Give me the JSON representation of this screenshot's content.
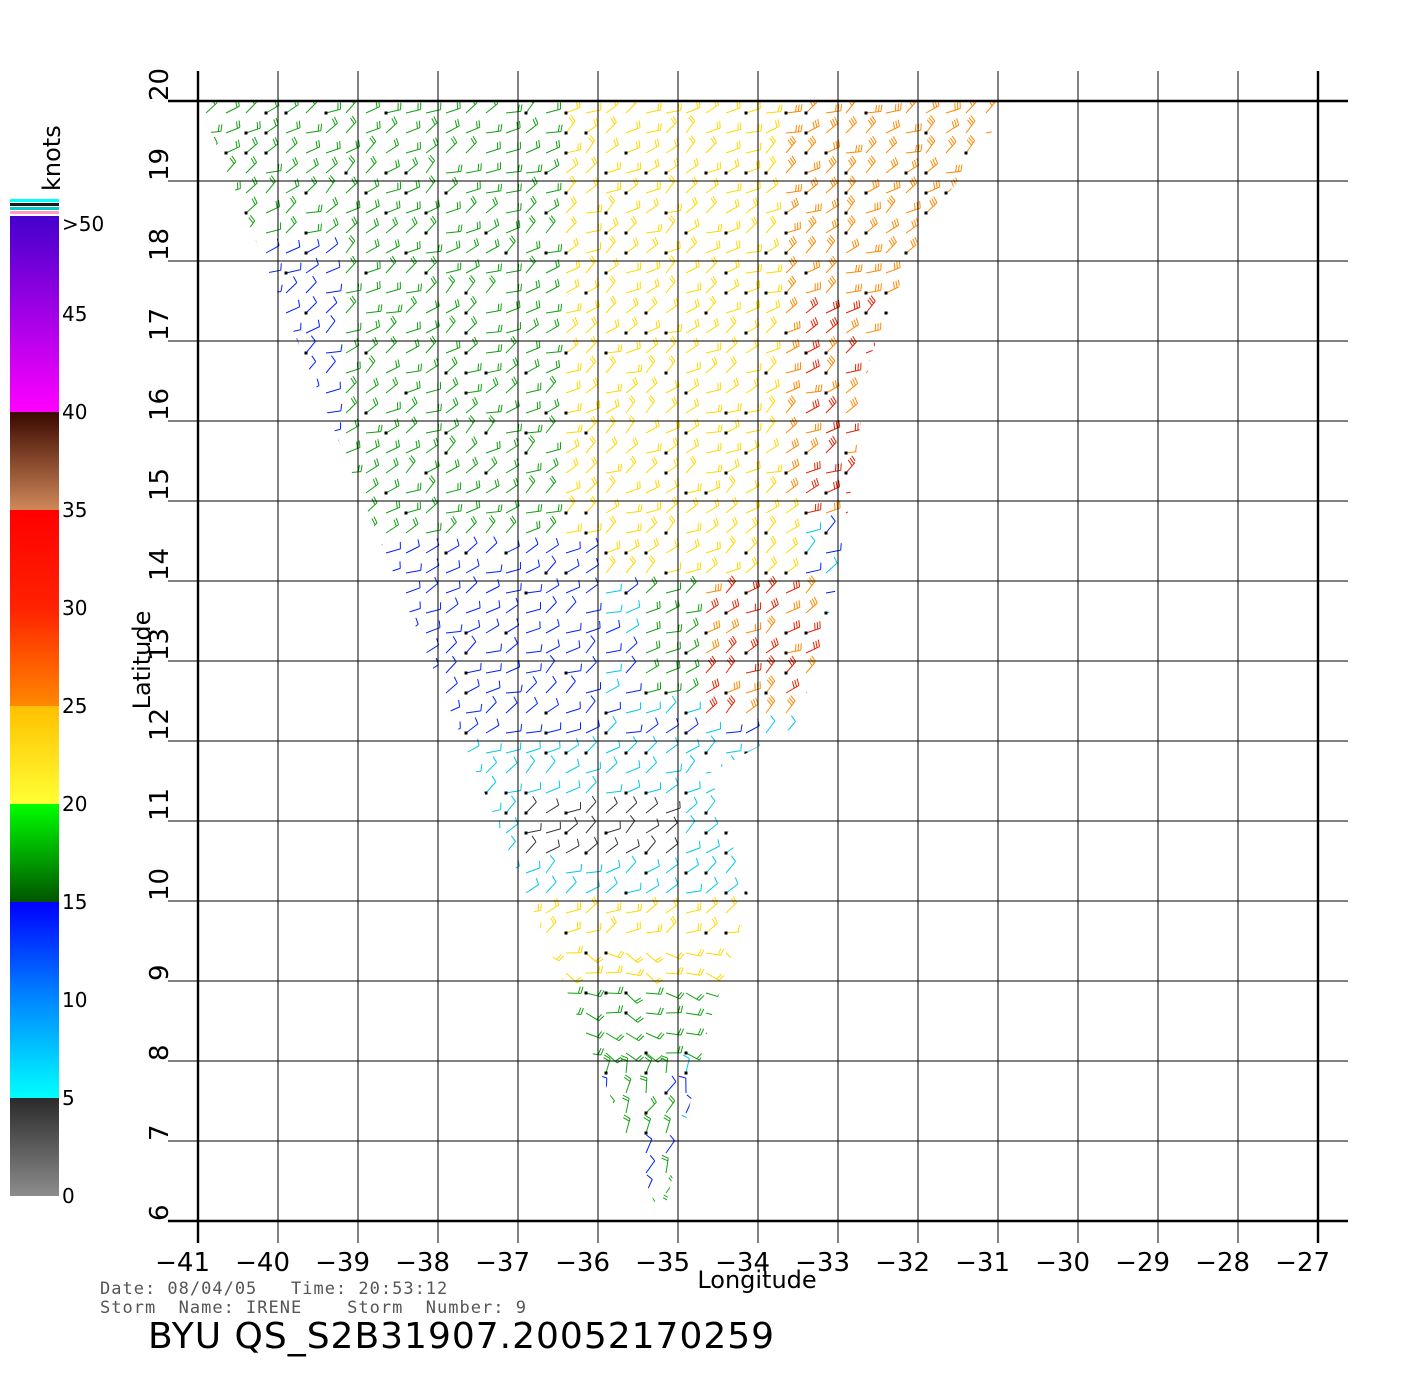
{
  "map": {
    "x_axis_label": "Longitude",
    "y_axis_label": "Latitude",
    "x_ticks": [
      -41,
      -40,
      -39,
      -38,
      -37,
      -36,
      -35,
      -34,
      -33,
      -32,
      -31,
      -30,
      -29,
      -28,
      -27
    ],
    "y_ticks": [
      6,
      7,
      8,
      9,
      10,
      11,
      12,
      13,
      14,
      15,
      16,
      17,
      18,
      19,
      20
    ],
    "x_tick_labels": [
      "−41",
      "−40",
      "−39",
      "−38",
      "−37",
      "−36",
      "−35",
      "−34",
      "−33",
      "−32",
      "−31",
      "−30",
      "−29",
      "−28",
      "−27"
    ],
    "y_tick_labels": [
      "6",
      "7",
      "8",
      "9",
      "10",
      "11",
      "12",
      "13",
      "14",
      "15",
      "16",
      "17",
      "18",
      "19",
      "20"
    ],
    "swath_polygon_lonlat": [
      [
        -41,
        20
      ],
      [
        -31,
        20
      ],
      [
        -31.1,
        19.5
      ],
      [
        -31.9,
        18.5
      ],
      [
        -32.6,
        16.8
      ],
      [
        -33,
        14
      ],
      [
        -33.5,
        12.2
      ],
      [
        -34.6,
        11.6
      ],
      [
        -34.1,
        10
      ],
      [
        -34.6,
        8.5
      ],
      [
        -35.2,
        6
      ]
    ],
    "wind_regions": [
      {
        "lon": [
          -41,
          -36
        ],
        "lat": [
          17.8,
          20
        ],
        "speed": 17
      },
      {
        "lon": [
          -41,
          -39.2
        ],
        "lat": [
          14.5,
          18.2
        ],
        "speed": 12
      },
      {
        "lon": [
          -39.2,
          -36
        ],
        "lat": [
          14.5,
          17.8
        ],
        "speed": 17
      },
      {
        "lon": [
          -36.5,
          -33.5
        ],
        "lat": [
          14,
          20
        ],
        "speed": 22
      },
      {
        "lon": [
          -33.8,
          -31
        ],
        "lat": [
          15,
          20
        ],
        "speed": 27
      },
      {
        "lon": [
          -33.6,
          -32.5
        ],
        "lat": [
          14.8,
          17.5
        ],
        "speed": 31
      },
      {
        "lon": [
          -41,
          -36
        ],
        "lat": [
          12,
          14.5
        ],
        "speed": 12
      },
      {
        "lon": [
          -35.5,
          -34
        ],
        "lat": [
          12.5,
          14
        ],
        "speed": 18
      },
      {
        "lon": [
          -34.8,
          -33.2
        ],
        "lat": [
          12.3,
          14
        ],
        "speed": 31
      },
      {
        "lon": [
          -38.5,
          -34
        ],
        "lat": [
          10,
          12
        ],
        "speed": 7
      },
      {
        "lon": [
          -37,
          -35
        ],
        "lat": [
          10.5,
          11.2
        ],
        "speed": 3
      },
      {
        "lon": [
          -41,
          -38.5
        ],
        "lat": [
          10.2,
          12
        ],
        "speed": 12
      },
      {
        "lon": [
          -41,
          -37.5
        ],
        "lat": [
          9.2,
          10.5
        ],
        "speed": 9
      },
      {
        "lon": [
          -37.5,
          -34
        ],
        "lat": [
          8.8,
          10
        ],
        "speed": 22
      },
      {
        "lon": [
          -41,
          -39.5
        ],
        "lat": [
          7.8,
          9.2
        ],
        "speed": 24
      },
      {
        "lon": [
          -39.5,
          -36.5
        ],
        "lat": [
          8,
          9
        ],
        "speed": 31
      },
      {
        "lon": [
          -36.5,
          -34.5
        ],
        "lat": [
          8,
          9
        ],
        "speed": 18
      },
      {
        "lon": [
          -41,
          -35
        ],
        "lat": [
          6,
          8
        ],
        "speed": 16
      },
      {
        "lon": [
          -40.8,
          -39.5
        ],
        "lat": [
          6,
          7.5
        ],
        "speed": 12
      }
    ]
  },
  "legend": {
    "title": "knots",
    "top_label": ">50",
    "labels": [
      "0",
      "5",
      "10",
      "15",
      "20",
      "25",
      "30",
      "35",
      "40",
      "45"
    ],
    "stops": [
      {
        "speed": 0,
        "color": "#8c8c8c"
      },
      {
        "speed": 5,
        "color": "#2a2a2a"
      },
      {
        "speed": 5.01,
        "color": "#00ffff"
      },
      {
        "speed": 10,
        "color": "#0088ff"
      },
      {
        "speed": 15,
        "color": "#0000ff"
      },
      {
        "speed": 15.01,
        "color": "#005500"
      },
      {
        "speed": 20,
        "color": "#00ff00"
      },
      {
        "speed": 20.01,
        "color": "#ffff33"
      },
      {
        "speed": 25,
        "color": "#ffc000"
      },
      {
        "speed": 25.01,
        "color": "#ff8800"
      },
      {
        "speed": 30,
        "color": "#ff2200"
      },
      {
        "speed": 35,
        "color": "#ff0000"
      },
      {
        "speed": 35.01,
        "color": "#d08858"
      },
      {
        "speed": 40,
        "color": "#3a0800"
      },
      {
        "speed": 40.01,
        "color": "#ff00ff"
      },
      {
        "speed": 50,
        "color": "#4400cc"
      }
    ],
    "cap_colors": [
      "#00ffff",
      "#1a1a1a",
      "#00cccc",
      "#ff99cc"
    ]
  },
  "info": {
    "line1": "Date: 08/04/05   Time: 20:53:12",
    "line2": "Storm  Name: IRENE    Storm  Number: 9"
  },
  "product_title": "BYU  QS_S2B31907.20052170259"
}
